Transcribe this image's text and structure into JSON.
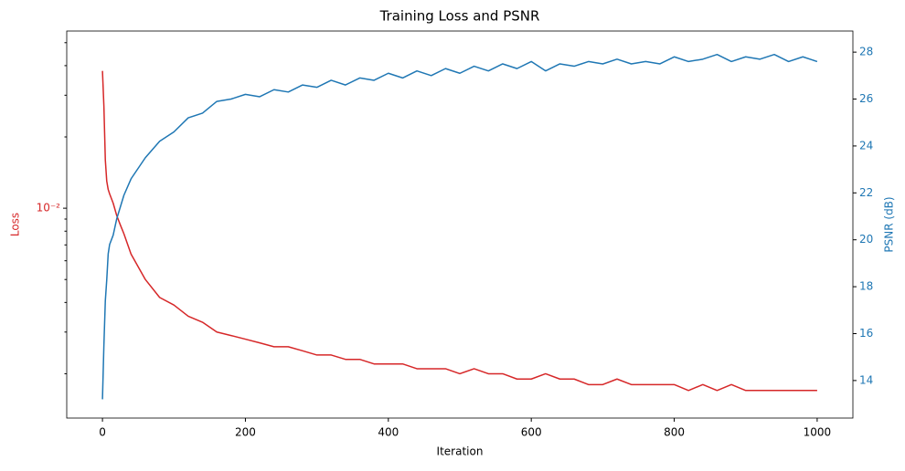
{
  "chart_data": {
    "type": "line",
    "title": "Training Loss and PSNR",
    "xlabel": "Iteration",
    "ylabel": "Loss",
    "y2label": "PSNR (dB)",
    "ylabel_color": "#d62728",
    "y2label_color": "#1f77b4",
    "ylog": true,
    "grid": false,
    "x": [
      0,
      2,
      4,
      6,
      8,
      10,
      15,
      20,
      25,
      30,
      40,
      60,
      80,
      100,
      120,
      140,
      160,
      180,
      200,
      220,
      240,
      260,
      280,
      300,
      320,
      340,
      360,
      380,
      400,
      420,
      440,
      460,
      480,
      500,
      520,
      540,
      560,
      580,
      600,
      620,
      640,
      660,
      680,
      700,
      720,
      740,
      760,
      780,
      800,
      820,
      840,
      860,
      880,
      900,
      920,
      940,
      960,
      980,
      1000
    ],
    "series": [
      {
        "name": "Loss",
        "color": "#d62728",
        "axis": "y",
        "values": [
          0.038,
          0.027,
          0.016,
          0.013,
          0.012,
          0.0115,
          0.0105,
          0.0093,
          0.0085,
          0.0078,
          0.0064,
          0.005,
          0.0042,
          0.0039,
          0.0035,
          0.0033,
          0.003,
          0.0029,
          0.0028,
          0.0027,
          0.0026,
          0.0026,
          0.0025,
          0.0024,
          0.0024,
          0.0023,
          0.0023,
          0.0022,
          0.0022,
          0.0022,
          0.0021,
          0.0021,
          0.0021,
          0.002,
          0.0021,
          0.002,
          0.002,
          0.0019,
          0.0019,
          0.002,
          0.0019,
          0.0019,
          0.0018,
          0.0018,
          0.0019,
          0.0018,
          0.0018,
          0.0018,
          0.0018,
          0.0017,
          0.0018,
          0.0017,
          0.0018,
          0.0017,
          0.0017,
          0.0017,
          0.0017,
          0.0017,
          0.0017
        ]
      },
      {
        "name": "PSNR",
        "color": "#1f77b4",
        "axis": "y2",
        "values": [
          13.2,
          15.5,
          17.4,
          18.3,
          19.4,
          19.8,
          20.2,
          20.9,
          21.4,
          21.9,
          22.6,
          23.5,
          24.2,
          24.6,
          25.2,
          25.4,
          25.9,
          26.0,
          26.2,
          26.1,
          26.4,
          26.3,
          26.6,
          26.5,
          26.8,
          26.6,
          26.9,
          26.8,
          27.1,
          26.9,
          27.2,
          27.0,
          27.3,
          27.1,
          27.4,
          27.2,
          27.5,
          27.3,
          27.6,
          27.2,
          27.5,
          27.4,
          27.6,
          27.5,
          27.7,
          27.5,
          27.6,
          27.5,
          27.8,
          27.6,
          27.7,
          27.9,
          27.6,
          27.8,
          27.7,
          27.9,
          27.6,
          27.8,
          27.6
        ]
      }
    ],
    "xlim": [
      -50,
      1050
    ],
    "xticks": [
      0,
      200,
      400,
      600,
      800,
      1000
    ],
    "ylim": [
      0.0013,
      0.056
    ],
    "yticks": [
      {
        "value": 0.01,
        "label": "10⁻²"
      }
    ],
    "yminorticks": [
      0.002,
      0.003,
      0.004,
      0.005,
      0.006,
      0.007,
      0.008,
      0.009,
      0.02,
      0.03,
      0.04,
      0.05
    ],
    "y2lim": [
      12.4,
      28.9
    ],
    "y2ticks": [
      14,
      16,
      18,
      20,
      22,
      24,
      26,
      28
    ]
  }
}
